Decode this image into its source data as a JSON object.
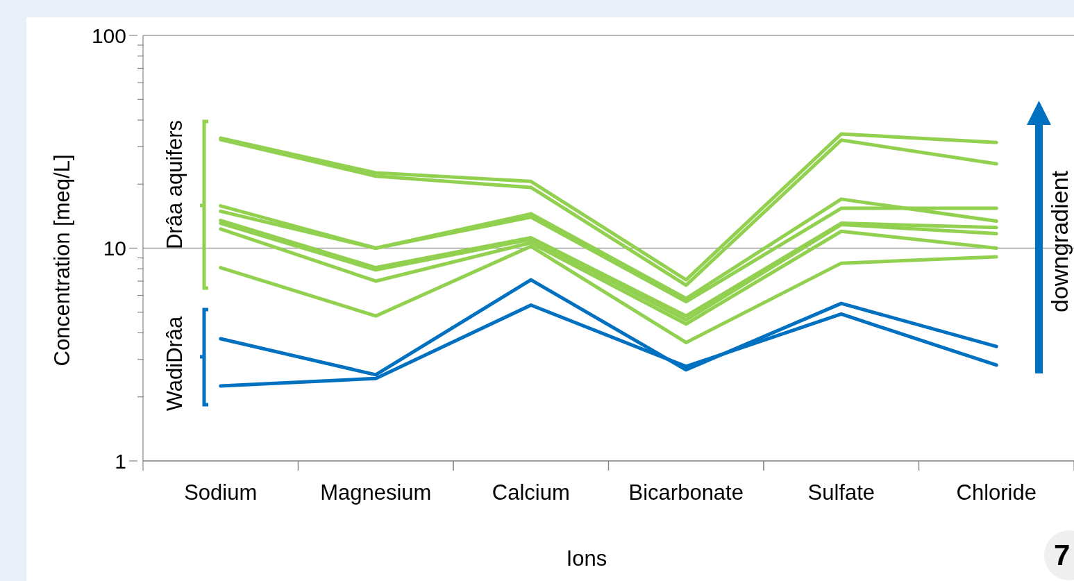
{
  "chart_data": {
    "type": "line",
    "xlabel": "Ions",
    "ylabel": "Concentration [meq/L]",
    "categories": [
      "Sodium",
      "Magnesium",
      "Calcium",
      "Bicarbonate",
      "Sulfate",
      "Chloride"
    ],
    "log": "y",
    "ylim": [
      1,
      100
    ],
    "yticks": [
      1,
      {
        "value": 2,
        "label": null
      },
      {
        "value": 3,
        "label": null
      },
      {
        "value": 4,
        "label": null
      },
      {
        "value": 5,
        "label": null
      },
      {
        "value": 6,
        "label": null
      },
      {
        "value": 7,
        "label": null
      },
      {
        "value": 8,
        "label": null
      },
      {
        "value": 9,
        "label": null
      },
      10,
      {
        "value": 20,
        "label": null
      },
      {
        "value": 30,
        "label": null
      },
      {
        "value": 40,
        "label": null
      },
      {
        "value": 50,
        "label": null
      },
      {
        "value": 60,
        "label": null
      },
      {
        "value": 70,
        "label": null
      },
      {
        "value": 80,
        "label": null
      },
      {
        "value": 90,
        "label": null
      },
      100
    ],
    "grid": "y",
    "marker": "none",
    "line_style": "solid",
    "series": [
      {
        "color": "#92d050",
        "values": [
          32.9,
          22.6,
          20.6,
          7.1,
          34.4,
          31.4
        ]
      },
      {
        "color": "#92d050",
        "values": [
          32.4,
          21.8,
          19.3,
          6.7,
          32.2,
          24.9
        ]
      },
      {
        "color": "#92d050",
        "values": [
          15.8,
          10.0,
          14.5,
          5.8,
          17.0,
          13.4
        ]
      },
      {
        "color": "#92d050",
        "values": [
          14.9,
          10.0,
          14.0,
          5.6,
          15.4,
          15.4
        ]
      },
      {
        "color": "#92d050",
        "values": [
          13.5,
          8.1,
          11.2,
          4.8,
          13.1,
          12.5
        ]
      },
      {
        "color": "#92d050",
        "values": [
          13.1,
          7.9,
          11.0,
          4.6,
          12.9,
          11.7
        ]
      },
      {
        "color": "#92d050",
        "values": [
          12.3,
          7.0,
          10.6,
          4.4,
          12.0,
          10.0
        ]
      },
      {
        "color": "#92d050",
        "values": [
          8.1,
          4.8,
          10.2,
          3.6,
          8.5,
          9.1
        ]
      },
      {
        "color": "#0070c0",
        "values": [
          3.75,
          2.54,
          7.1,
          2.68,
          5.5,
          3.45
        ]
      },
      {
        "color": "#0070c0",
        "values": [
          2.25,
          2.44,
          5.4,
          2.78,
          4.9,
          2.82
        ]
      }
    ],
    "annotations": [
      "Drâa aquifers",
      "WadiDrâa",
      "downgradient",
      "7"
    ]
  }
}
